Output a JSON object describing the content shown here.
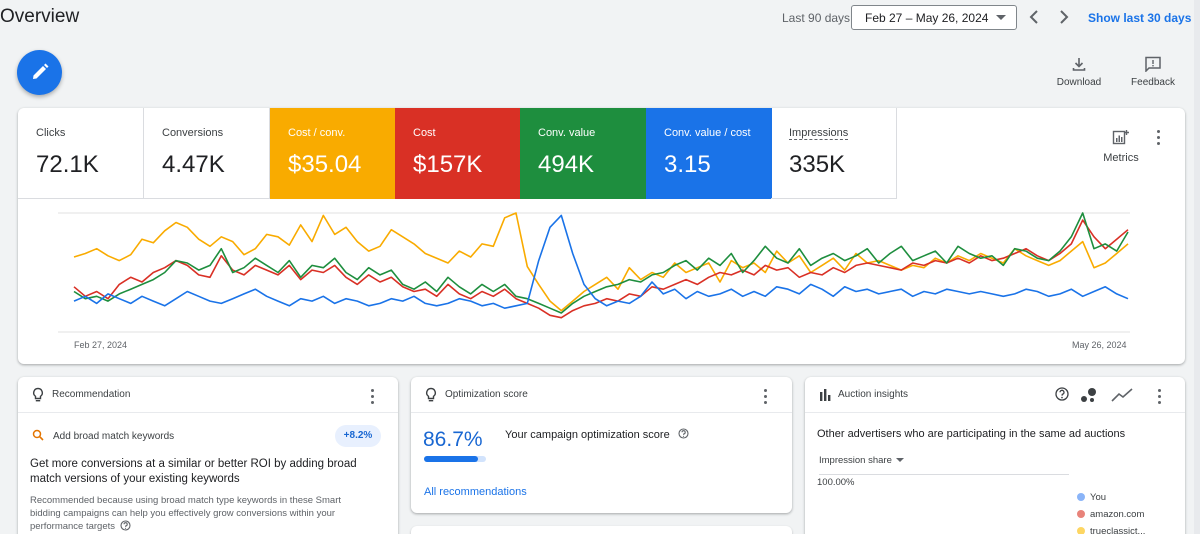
{
  "header": {
    "title": "Overview",
    "range_label": "Last 90 days",
    "date_range": "Feb 27 – May 26, 2024",
    "show_last": "Show last 30 days"
  },
  "toolbar": {
    "download_label": "Download",
    "feedback_label": "Feedback"
  },
  "metrics": [
    {
      "label": "Clicks",
      "value": "72.1K",
      "color": "#ffffff",
      "selected": false
    },
    {
      "label": "Conversions",
      "value": "4.47K",
      "color": "#ffffff",
      "selected": false
    },
    {
      "label": "Cost / conv.",
      "value": "$35.04",
      "color": "#f9ab00",
      "selected": true
    },
    {
      "label": "Cost",
      "value": "$157K",
      "color": "#d93025",
      "selected": true
    },
    {
      "label": "Conv. value",
      "value": "494K",
      "color": "#1e8e3e",
      "selected": true
    },
    {
      "label": "Conv. value / cost",
      "value": "3.15",
      "color": "#1a73e8",
      "selected": true
    },
    {
      "label": "Impressions",
      "value": "335K",
      "color": "#ffffff",
      "selected": false
    }
  ],
  "metrics_button_label": "Metrics",
  "chart_data": {
    "type": "line",
    "x_start_label": "Feb 27, 2024",
    "x_end_label": "May 26, 2024",
    "series": [
      {
        "color": "#f9ab00",
        "values": [
          63,
          66,
          70,
          64,
          60,
          65,
          78,
          75,
          85,
          92,
          88,
          78,
          72,
          80,
          76,
          65,
          70,
          82,
          80,
          73,
          90,
          76,
          98,
          82,
          88,
          76,
          68,
          72,
          86,
          80,
          74,
          66,
          62,
          58,
          68,
          63,
          74,
          72,
          96,
          100,
          55,
          40,
          26,
          18,
          26,
          34,
          40,
          46,
          36,
          54,
          44,
          50,
          46,
          58,
          50,
          54,
          58,
          42,
          60,
          54,
          58,
          50,
          68,
          58,
          64,
          50,
          56,
          62,
          52,
          66,
          58,
          60,
          56,
          52,
          56,
          54,
          62,
          58,
          64,
          60,
          66,
          62,
          58,
          70,
          64,
          60,
          56,
          60,
          68,
          76,
          54,
          58,
          66,
          74
        ]
      },
      {
        "color": "#d93025",
        "values": [
          38,
          30,
          34,
          28,
          40,
          46,
          42,
          50,
          54,
          60,
          56,
          48,
          46,
          64,
          52,
          48,
          56,
          52,
          48,
          56,
          44,
          52,
          50,
          56,
          46,
          40,
          48,
          42,
          46,
          38,
          34,
          36,
          30,
          40,
          32,
          28,
          34,
          30,
          36,
          28,
          24,
          20,
          14,
          12,
          18,
          22,
          24,
          28,
          26,
          32,
          30,
          38,
          36,
          40,
          44,
          40,
          46,
          50,
          48,
          52,
          48,
          56,
          52,
          54,
          46,
          50,
          48,
          54,
          50,
          56,
          58,
          56,
          54,
          52,
          58,
          56,
          60,
          58,
          62,
          58,
          64,
          60,
          62,
          66,
          70,
          64,
          60,
          66,
          74,
          94,
          80,
          70,
          78,
          86
        ]
      },
      {
        "color": "#1e8e3e",
        "values": [
          34,
          28,
          30,
          26,
          32,
          36,
          40,
          44,
          50,
          60,
          58,
          52,
          56,
          70,
          50,
          54,
          62,
          56,
          50,
          60,
          46,
          56,
          54,
          62,
          50,
          44,
          54,
          48,
          52,
          40,
          36,
          42,
          34,
          46,
          38,
          32,
          40,
          34,
          40,
          30,
          28,
          24,
          20,
          16,
          24,
          30,
          34,
          38,
          40,
          44,
          42,
          48,
          50,
          56,
          60,
          52,
          62,
          56,
          66,
          50,
          60,
          72,
          62,
          58,
          70,
          56,
          62,
          66,
          60,
          64,
          70,
          58,
          66,
          72,
          60,
          64,
          68,
          58,
          72,
          66,
          62,
          64,
          56,
          70,
          68,
          62,
          60,
          68,
          80,
          100,
          70,
          74,
          68,
          84
        ]
      },
      {
        "color": "#1a73e8",
        "values": [
          26,
          30,
          24,
          32,
          28,
          24,
          30,
          26,
          22,
          28,
          34,
          30,
          26,
          24,
          28,
          32,
          36,
          30,
          26,
          22,
          28,
          26,
          30,
          24,
          28,
          26,
          22,
          24,
          28,
          26,
          30,
          24,
          22,
          24,
          28,
          26,
          22,
          24,
          20,
          22,
          24,
          60,
          88,
          98,
          66,
          40,
          28,
          22,
          26,
          24,
          30,
          42,
          32,
          36,
          28,
          34,
          30,
          32,
          36,
          30,
          34,
          30,
          38,
          36,
          32,
          40,
          36,
          30,
          38,
          34,
          36,
          32,
          34,
          36,
          30,
          34,
          32,
          36,
          34,
          32,
          34,
          32,
          30,
          32,
          36,
          34,
          30,
          32,
          36,
          30,
          34,
          38,
          32,
          28
        ]
      }
    ]
  },
  "recommendation": {
    "title": "Recommendation",
    "item": "Add broad match keywords",
    "badge": "+8.2%",
    "headline": "Get more conversions at a similar or better ROI by adding broad match versions of your existing keywords",
    "body": "Recommended because using broad match type keywords in these Smart bidding campaigns can help you effectively grow conversions within your performance targets"
  },
  "optimization": {
    "title": "Optimization score",
    "score": "86.7%",
    "score_fraction": 0.867,
    "label": "Your campaign optimization score",
    "link": "All recommendations"
  },
  "auction": {
    "title": "Auction insights",
    "subtitle": "Other advertisers who are participating in the same ad auctions",
    "select": "Impression share",
    "pct": "100.00%",
    "legend": [
      {
        "label": "You",
        "color": "#8ab4f8"
      },
      {
        "label": "amazon.com",
        "color": "#e8837a"
      },
      {
        "label": "trueclassict...",
        "color": "#fdd663"
      }
    ]
  }
}
